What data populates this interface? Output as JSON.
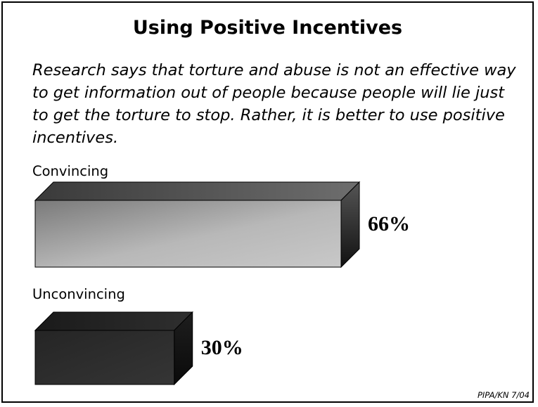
{
  "chart_data": {
    "type": "bar",
    "title": "Using Positive Incentives",
    "question": "Research says that torture and abuse is not an effective way to get information out of people because people will lie just to get the torture to stop.  Rather, it is better to use positive incentives.",
    "categories": [
      "Convincing",
      "Unconvincing"
    ],
    "values": [
      66,
      30
    ],
    "value_labels": [
      "66%",
      "30%"
    ],
    "orientation": "horizontal",
    "colors": {
      "convincing": "#a8a8a8",
      "unconvincing": "#2a2a2a"
    },
    "source": "PIPA/KN 7/04"
  }
}
